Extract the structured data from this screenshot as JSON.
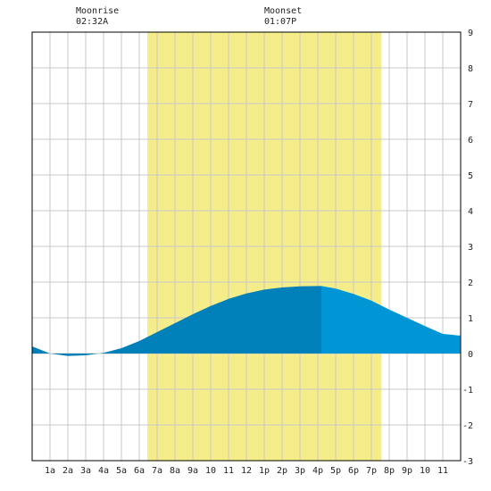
{
  "moon": {
    "rise_label": "Moonrise",
    "rise_time": "02:32A",
    "set_label": "Moonset",
    "set_time": "01:07P"
  },
  "colors": {
    "daylight": "#f5ec8a",
    "tide_past": "#0080b8",
    "tide_future": "#0096d6",
    "grid": "#c8c8c8",
    "frame": "#000000"
  },
  "chart_data": {
    "type": "area",
    "title": "",
    "xlabel": "",
    "ylabel": "",
    "xlim": [
      0,
      24
    ],
    "ylim": [
      -3,
      9
    ],
    "y_ticks": [
      -3,
      -2,
      -1,
      0,
      1,
      2,
      3,
      4,
      5,
      6,
      7,
      8,
      9
    ],
    "x_tick_labels": [
      "1a",
      "2a",
      "3a",
      "4a",
      "5a",
      "6a",
      "7a",
      "8a",
      "9a",
      "10",
      "11",
      "12",
      "1p",
      "2p",
      "3p",
      "4p",
      "5p",
      "6p",
      "7p",
      "8p",
      "9p",
      "10",
      "11"
    ],
    "x_tick_hours": [
      1,
      2,
      3,
      4,
      5,
      6,
      7,
      8,
      9,
      10,
      11,
      12,
      13,
      14,
      15,
      16,
      17,
      18,
      19,
      20,
      21,
      22,
      23
    ],
    "daylight_hours": [
      6.45,
      19.55
    ],
    "current_hour": 16.2,
    "grid": true,
    "series": [
      {
        "x": [
          0,
          1,
          2,
          3,
          4,
          5,
          6,
          7,
          8,
          9,
          10,
          11,
          12,
          13,
          14,
          15,
          16,
          16.2,
          17,
          18,
          19,
          20,
          21,
          22,
          23,
          24
        ],
        "values": [
          0.2,
          0.0,
          -0.07,
          -0.05,
          0.02,
          0.15,
          0.35,
          0.6,
          0.85,
          1.1,
          1.33,
          1.53,
          1.68,
          1.79,
          1.85,
          1.88,
          1.89,
          1.89,
          1.82,
          1.67,
          1.48,
          1.23,
          1.0,
          0.77,
          0.55,
          0.5
        ]
      }
    ]
  }
}
